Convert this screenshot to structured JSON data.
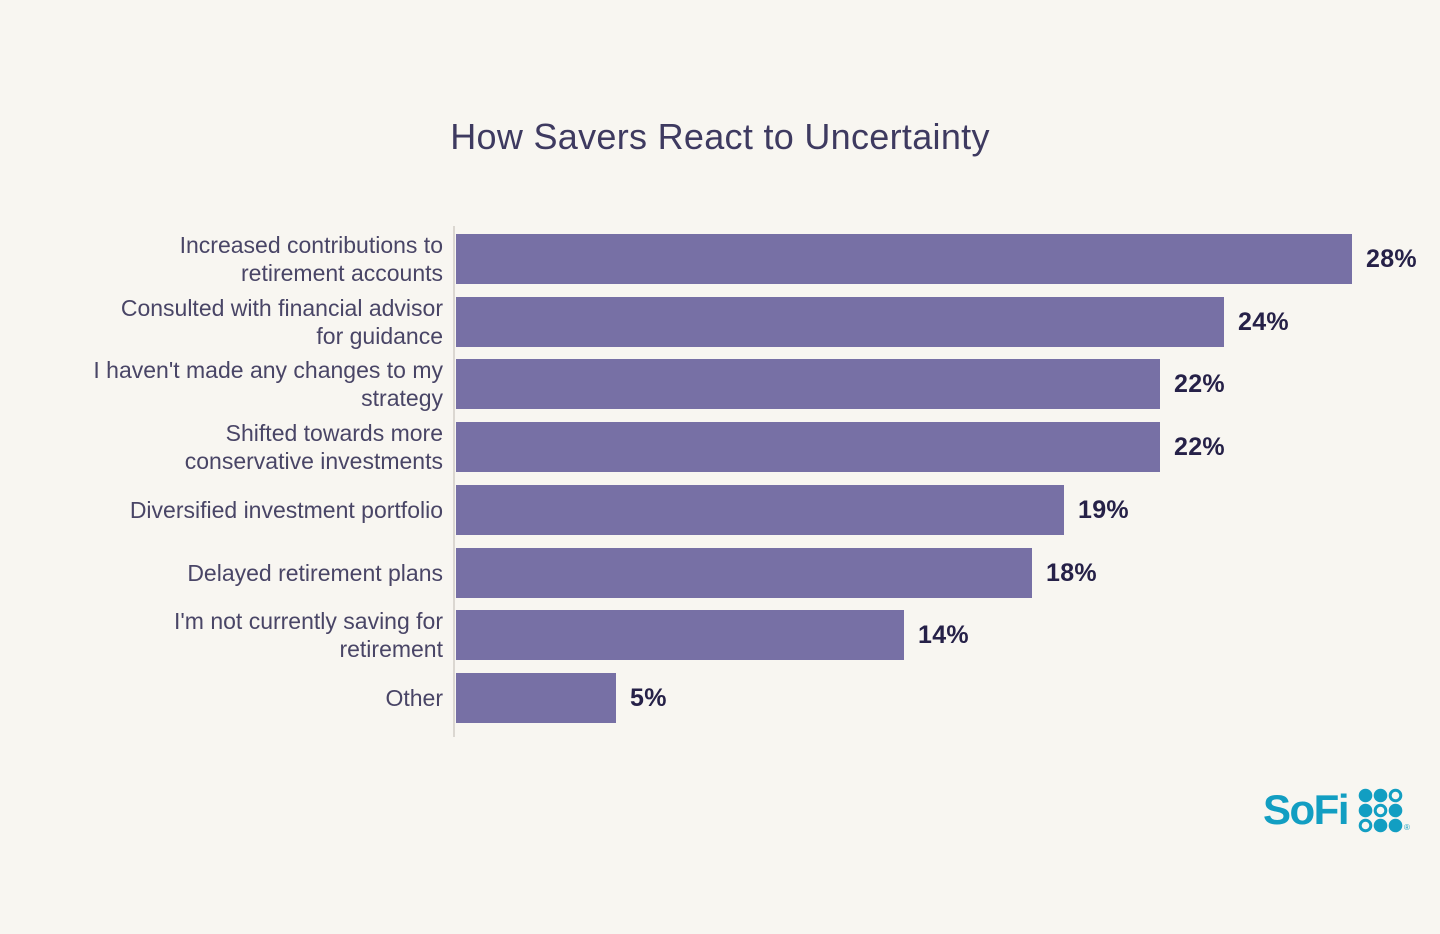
{
  "page": {
    "background_color": "#F8F6F1"
  },
  "chart_data": {
    "type": "bar",
    "orientation": "horizontal",
    "title": "How Savers React to Uncertainty",
    "categories": [
      "Increased contributions to retirement accounts",
      "Consulted with financial advisor for guidance",
      "I haven't made any changes to my strategy",
      "Shifted towards more conservative investments",
      "Diversified investment portfolio",
      "Delayed retirement plans",
      "I'm not currently saving for retirement",
      "Other"
    ],
    "category_lines": [
      [
        "Increased contributions to",
        "retirement accounts"
      ],
      [
        "Consulted with financial advisor",
        "for guidance"
      ],
      [
        "I haven't made any changes to my",
        "strategy"
      ],
      [
        "Shifted towards more",
        "conservative investments"
      ],
      [
        "Diversified investment portfolio"
      ],
      [
        "Delayed retirement plans"
      ],
      [
        "I'm not currently saving for",
        "retirement"
      ],
      [
        "Other"
      ]
    ],
    "values": [
      28,
      24,
      22,
      22,
      19,
      18,
      14,
      5
    ],
    "value_labels": [
      "28%",
      "24%",
      "22%",
      "22%",
      "19%",
      "18%",
      "14%",
      "5%"
    ],
    "xlim": [
      0,
      30
    ],
    "grid": false,
    "legend": null,
    "bar_color": "#7770A5",
    "value_label_color": "#262148",
    "category_label_color": "#494566",
    "title_color": "#3E3A60",
    "axis_line_color": "#DBD7D1"
  },
  "branding": {
    "logo_text": "SoFi",
    "logo_color": "#129EC2",
    "registered_mark": "®",
    "dot_pattern": [
      [
        1,
        1,
        0
      ],
      [
        1,
        0,
        1
      ],
      [
        0,
        1,
        1
      ]
    ]
  }
}
